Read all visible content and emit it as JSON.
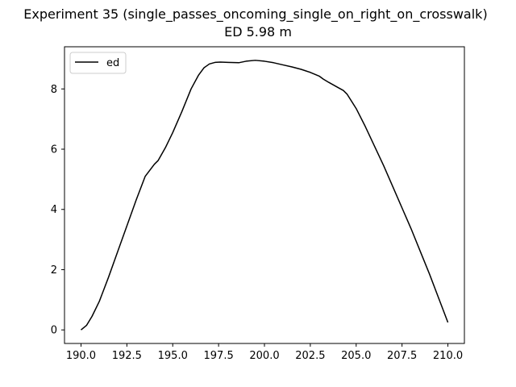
{
  "chart_data": {
    "type": "line",
    "title": "Experiment 35 (single_passes_oncoming_single_on_right_on_crosswalk)",
    "subtitle": "ED 5.98 m",
    "xlabel": "",
    "ylabel": "",
    "xlim": [
      189.1,
      210.9
    ],
    "ylim": [
      -0.45,
      9.4
    ],
    "x_ticks": [
      190.0,
      192.5,
      195.0,
      197.5,
      200.0,
      202.5,
      205.0,
      207.5,
      210.0
    ],
    "x_tick_labels": [
      "190.0",
      "192.5",
      "195.0",
      "197.5",
      "200.0",
      "202.5",
      "205.0",
      "207.5",
      "210.0"
    ],
    "y_ticks": [
      0,
      2,
      4,
      6,
      8
    ],
    "y_tick_labels": [
      "0",
      "2",
      "4",
      "6",
      "8"
    ],
    "grid": false,
    "legend": {
      "position": "top-left",
      "entries": [
        "ed"
      ]
    },
    "series": [
      {
        "name": "ed",
        "color": "#000000",
        "x": [
          190.0,
          190.3,
          190.6,
          191.0,
          191.5,
          192.0,
          192.5,
          193.0,
          193.5,
          194.0,
          194.2,
          194.6,
          195.0,
          195.5,
          196.0,
          196.4,
          196.7,
          197.0,
          197.3,
          197.6,
          198.0,
          198.6,
          199.0,
          199.5,
          200.0,
          200.5,
          201.0,
          201.5,
          202.0,
          202.5,
          203.0,
          203.2,
          203.5,
          204.0,
          204.3,
          204.5,
          205.0,
          205.5,
          206.0,
          206.5,
          207.0,
          207.5,
          208.0,
          208.5,
          209.0,
          209.5,
          210.0
        ],
        "y": [
          0.0,
          0.15,
          0.45,
          0.95,
          1.75,
          2.6,
          3.45,
          4.3,
          5.1,
          5.5,
          5.62,
          6.05,
          6.55,
          7.25,
          8.0,
          8.45,
          8.7,
          8.83,
          8.88,
          8.89,
          8.88,
          8.87,
          8.92,
          8.95,
          8.92,
          8.87,
          8.8,
          8.73,
          8.65,
          8.55,
          8.42,
          8.33,
          8.22,
          8.05,
          7.95,
          7.83,
          7.35,
          6.75,
          6.1,
          5.45,
          4.75,
          4.05,
          3.35,
          2.6,
          1.85,
          1.05,
          0.25
        ]
      }
    ]
  }
}
